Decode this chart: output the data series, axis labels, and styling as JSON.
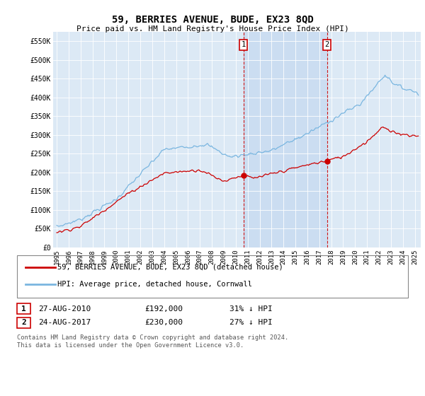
{
  "title": "59, BERRIES AVENUE, BUDE, EX23 8QD",
  "subtitle": "Price paid vs. HM Land Registry's House Price Index (HPI)",
  "ylabel_ticks": [
    "£0",
    "£50K",
    "£100K",
    "£150K",
    "£200K",
    "£250K",
    "£300K",
    "£350K",
    "£400K",
    "£450K",
    "£500K",
    "£550K"
  ],
  "ytick_values": [
    0,
    50000,
    100000,
    150000,
    200000,
    250000,
    300000,
    350000,
    400000,
    450000,
    500000,
    550000
  ],
  "ylim": [
    0,
    575000
  ],
  "xlim_start": 1994.7,
  "xlim_end": 2025.5,
  "hpi_color": "#7ab6e0",
  "price_color": "#cc0000",
  "vline_color": "#cc0000",
  "bg_color": "#dce9f5",
  "shade_color": "#c5d9f0",
  "transaction1_x": 2010.65,
  "transaction1_y": 192000,
  "transaction1_label": "1",
  "transaction2_x": 2017.65,
  "transaction2_y": 230000,
  "transaction2_label": "2",
  "legend_label1": "59, BERRIES AVENUE, BUDE, EX23 8QD (detached house)",
  "legend_label2": "HPI: Average price, detached house, Cornwall",
  "table_row1": [
    "1",
    "27-AUG-2010",
    "£192,000",
    "31% ↓ HPI"
  ],
  "table_row2": [
    "2",
    "24-AUG-2017",
    "£230,000",
    "27% ↓ HPI"
  ],
  "footnote": "Contains HM Land Registry data © Crown copyright and database right 2024.\nThis data is licensed under the Open Government Licence v3.0.",
  "xtick_years": [
    1995,
    1996,
    1997,
    1998,
    1999,
    2000,
    2001,
    2002,
    2003,
    2004,
    2005,
    2006,
    2007,
    2008,
    2009,
    2010,
    2011,
    2012,
    2013,
    2014,
    2015,
    2016,
    2017,
    2018,
    2019,
    2020,
    2021,
    2022,
    2023,
    2024,
    2025
  ]
}
